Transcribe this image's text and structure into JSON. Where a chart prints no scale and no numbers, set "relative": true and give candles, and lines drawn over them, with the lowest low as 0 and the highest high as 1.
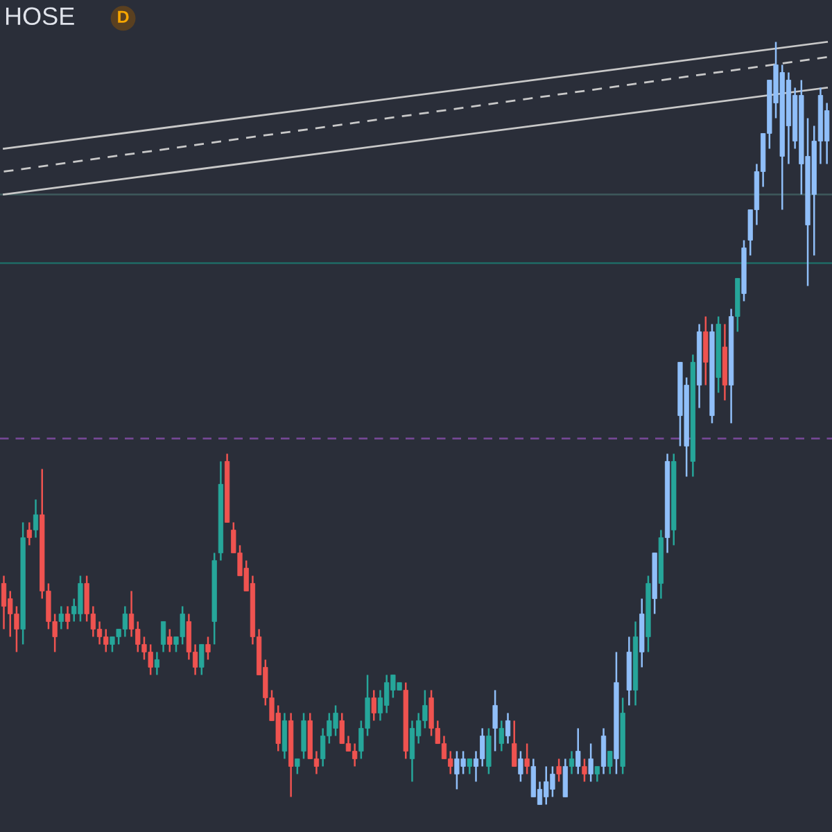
{
  "chart_data": {
    "type": "candlestick",
    "title": "HOSE",
    "annotations": [
      "D"
    ],
    "relative": true,
    "categories": [
      null,
      null,
      null,
      null,
      null,
      null,
      null,
      null,
      null,
      null,
      null,
      null,
      null,
      null,
      null,
      null,
      null,
      null,
      null,
      null,
      null,
      null,
      null,
      null,
      null,
      null,
      null,
      null,
      null,
      null,
      null,
      null,
      null,
      null,
      null,
      null,
      null,
      null,
      null,
      null,
      null,
      null,
      null,
      null,
      null,
      null,
      null,
      null,
      null,
      null,
      null,
      null,
      null,
      null,
      null,
      null,
      null,
      null,
      null,
      null,
      null,
      null,
      null,
      null,
      null,
      null,
      null,
      null,
      null,
      null,
      null,
      null,
      null,
      null,
      null,
      null,
      null,
      null,
      null,
      null,
      null,
      null,
      null,
      null,
      null,
      null,
      null,
      null,
      null,
      null,
      null,
      null,
      null,
      null,
      null,
      null,
      null,
      null,
      null,
      null,
      null,
      null,
      null,
      null,
      null,
      null,
      null,
      null,
      null,
      null,
      null,
      null,
      null,
      null,
      null,
      null,
      null,
      null,
      null,
      null,
      null,
      null,
      null,
      null,
      null,
      null,
      null,
      null,
      null,
      null
    ],
    "ohlc": [
      [
        0.29,
        0.3,
        0.23,
        0.26
      ],
      [
        0.27,
        0.28,
        0.22,
        0.25
      ],
      [
        0.25,
        0.26,
        0.2,
        0.23
      ],
      [
        0.23,
        0.37,
        0.21,
        0.35
      ],
      [
        0.36,
        0.37,
        0.34,
        0.35
      ],
      [
        0.36,
        0.4,
        0.35,
        0.38
      ],
      [
        0.38,
        0.44,
        0.27,
        0.28
      ],
      [
        0.28,
        0.29,
        0.23,
        0.24
      ],
      [
        0.24,
        0.25,
        0.2,
        0.22
      ],
      [
        0.24,
        0.26,
        0.23,
        0.25
      ],
      [
        0.25,
        0.26,
        0.23,
        0.24
      ],
      [
        0.25,
        0.27,
        0.24,
        0.26
      ],
      [
        0.25,
        0.3,
        0.24,
        0.29
      ],
      [
        0.29,
        0.3,
        0.24,
        0.25
      ],
      [
        0.25,
        0.26,
        0.22,
        0.23
      ],
      [
        0.23,
        0.24,
        0.21,
        0.22
      ],
      [
        0.22,
        0.23,
        0.2,
        0.21
      ],
      [
        0.21,
        0.22,
        0.2,
        0.22
      ],
      [
        0.22,
        0.23,
        0.21,
        0.23
      ],
      [
        0.23,
        0.26,
        0.22,
        0.25
      ],
      [
        0.25,
        0.28,
        0.22,
        0.23
      ],
      [
        0.23,
        0.24,
        0.2,
        0.21
      ],
      [
        0.21,
        0.22,
        0.19,
        0.2
      ],
      [
        0.2,
        0.21,
        0.17,
        0.18
      ],
      [
        0.18,
        0.2,
        0.17,
        0.19
      ],
      [
        0.21,
        0.24,
        0.2,
        0.24
      ],
      [
        0.22,
        0.23,
        0.2,
        0.21
      ],
      [
        0.21,
        0.22,
        0.2,
        0.22
      ],
      [
        0.22,
        0.26,
        0.21,
        0.25
      ],
      [
        0.24,
        0.25,
        0.19,
        0.2
      ],
      [
        0.2,
        0.21,
        0.17,
        0.18
      ],
      [
        0.18,
        0.21,
        0.17,
        0.21
      ],
      [
        0.21,
        0.22,
        0.19,
        0.2
      ],
      [
        0.24,
        0.33,
        0.21,
        0.32
      ],
      [
        0.33,
        0.45,
        0.32,
        0.42
      ],
      [
        0.45,
        0.46,
        0.37,
        0.37
      ],
      [
        0.36,
        0.37,
        0.33,
        0.33
      ],
      [
        0.33,
        0.34,
        0.3,
        0.3
      ],
      [
        0.31,
        0.32,
        0.28,
        0.28
      ],
      [
        0.29,
        0.3,
        0.21,
        0.22
      ],
      [
        0.22,
        0.23,
        0.17,
        0.17
      ],
      [
        0.18,
        0.19,
        0.13,
        0.14
      ],
      [
        0.14,
        0.15,
        0.11,
        0.11
      ],
      [
        0.12,
        0.13,
        0.07,
        0.08
      ],
      [
        0.07,
        0.12,
        0.06,
        0.11
      ],
      [
        0.11,
        0.12,
        0.01,
        0.05
      ],
      [
        0.05,
        0.06,
        0.04,
        0.06
      ],
      [
        0.07,
        0.12,
        0.06,
        0.11
      ],
      [
        0.11,
        0.12,
        0.06,
        0.06
      ],
      [
        0.06,
        0.07,
        0.04,
        0.05
      ],
      [
        0.06,
        0.1,
        0.05,
        0.09
      ],
      [
        0.09,
        0.12,
        0.08,
        0.11
      ],
      [
        0.1,
        0.13,
        0.09,
        0.12
      ],
      [
        0.11,
        0.12,
        0.08,
        0.08
      ],
      [
        0.08,
        0.09,
        0.07,
        0.07
      ],
      [
        0.07,
        0.08,
        0.05,
        0.06
      ],
      [
        0.07,
        0.11,
        0.06,
        0.1
      ],
      [
        0.1,
        0.17,
        0.09,
        0.14
      ],
      [
        0.14,
        0.15,
        0.11,
        0.12
      ],
      [
        0.12,
        0.15,
        0.11,
        0.14
      ],
      [
        0.13,
        0.17,
        0.12,
        0.16
      ],
      [
        0.15,
        0.17,
        0.14,
        0.17
      ],
      [
        0.15,
        0.16,
        0.15,
        0.16
      ],
      [
        0.15,
        0.16,
        0.06,
        0.07
      ],
      [
        0.06,
        0.11,
        0.03,
        0.1
      ],
      [
        0.09,
        0.12,
        0.08,
        0.11
      ],
      [
        0.11,
        0.15,
        0.1,
        0.13
      ],
      [
        0.14,
        0.15,
        0.09,
        0.1
      ],
      [
        0.1,
        0.11,
        0.08,
        0.08
      ],
      [
        0.08,
        0.09,
        0.06,
        0.06
      ],
      [
        0.06,
        0.07,
        0.04,
        0.05
      ],
      [
        0.04,
        0.07,
        0.02,
        0.06
      ],
      [
        0.06,
        0.07,
        0.04,
        0.05
      ],
      [
        0.05,
        0.06,
        0.04,
        0.06
      ],
      [
        0.05,
        0.07,
        0.03,
        0.06
      ],
      [
        0.06,
        0.1,
        0.05,
        0.09
      ],
      [
        0.05,
        0.1,
        0.04,
        0.09
      ],
      [
        0.13,
        0.15,
        0.07,
        0.1
      ],
      [
        0.08,
        0.11,
        0.07,
        0.1
      ],
      [
        0.09,
        0.12,
        0.08,
        0.11
      ],
      [
        0.08,
        0.11,
        0.05,
        0.05
      ],
      [
        0.06,
        0.07,
        0.03,
        0.04
      ],
      [
        0.06,
        0.08,
        0.04,
        0.05
      ],
      [
        0.05,
        0.06,
        0.01,
        0.01
      ],
      [
        0.02,
        0.03,
        0.0,
        0.0
      ],
      [
        0.01,
        0.05,
        0.0,
        0.03
      ],
      [
        0.04,
        0.05,
        0.01,
        0.02
      ],
      [
        0.05,
        0.06,
        0.03,
        0.04
      ],
      [
        0.05,
        0.06,
        0.01,
        0.01
      ],
      [
        0.05,
        0.07,
        0.04,
        0.06
      ],
      [
        0.07,
        0.1,
        0.04,
        0.05
      ],
      [
        0.05,
        0.06,
        0.03,
        0.04
      ],
      [
        0.06,
        0.08,
        0.03,
        0.04
      ],
      [
        0.04,
        0.05,
        0.03,
        0.05
      ],
      [
        0.05,
        0.1,
        0.04,
        0.09
      ],
      [
        0.05,
        0.07,
        0.04,
        0.07
      ],
      [
        0.06,
        0.2,
        0.04,
        0.16
      ],
      [
        0.05,
        0.14,
        0.04,
        0.12
      ],
      [
        0.15,
        0.22,
        0.13,
        0.2
      ],
      [
        0.15,
        0.24,
        0.13,
        0.22
      ],
      [
        0.2,
        0.27,
        0.18,
        0.25
      ],
      [
        0.22,
        0.3,
        0.2,
        0.29
      ],
      [
        0.27,
        0.33,
        0.25,
        0.33
      ],
      [
        0.29,
        0.36,
        0.27,
        0.35
      ],
      [
        0.35,
        0.46,
        0.33,
        0.45
      ],
      [
        0.36,
        0.46,
        0.34,
        0.45
      ],
      [
        0.51,
        0.58,
        0.47,
        0.58
      ],
      [
        0.47,
        0.56,
        0.43,
        0.55
      ],
      [
        0.45,
        0.59,
        0.43,
        0.58
      ],
      [
        0.55,
        0.63,
        0.52,
        0.62
      ],
      [
        0.62,
        0.64,
        0.55,
        0.58
      ],
      [
        0.62,
        0.63,
        0.5,
        0.51
      ],
      [
        0.56,
        0.64,
        0.54,
        0.63
      ],
      [
        0.6,
        0.63,
        0.53,
        0.55
      ],
      [
        0.55,
        0.65,
        0.5,
        0.64
      ],
      [
        0.64,
        0.69,
        0.62,
        0.69
      ],
      [
        0.67,
        0.74,
        0.66,
        0.73
      ],
      [
        0.74,
        0.78,
        0.72,
        0.78
      ],
      [
        0.78,
        0.84,
        0.76,
        0.83
      ],
      [
        0.83,
        0.88,
        0.81,
        0.88
      ],
      [
        0.88,
        0.95,
        0.86,
        0.95
      ],
      [
        0.92,
        1.0,
        0.9,
        0.97
      ],
      [
        0.96,
        0.97,
        0.78,
        0.85
      ],
      [
        0.95,
        0.96,
        0.84,
        0.89
      ],
      [
        0.93,
        0.94,
        0.86,
        0.87
      ],
      [
        0.93,
        0.95,
        0.8,
        0.84
      ],
      [
        0.85,
        0.9,
        0.68,
        0.76
      ],
      [
        0.87,
        0.89,
        0.72,
        0.8
      ],
      [
        0.93,
        0.94,
        0.84,
        0.87
      ],
      [
        0.91,
        0.92,
        0.84,
        0.87
      ]
    ],
    "colors": [
      "#ef5350",
      "#ef5350",
      "#ef5350",
      "#26a69a",
      "#ef5350",
      "#26a69a",
      "#ef5350",
      "#ef5350",
      "#ef5350",
      "#26a69a",
      "#ef5350",
      "#26a69a",
      "#26a69a",
      "#ef5350",
      "#ef5350",
      "#ef5350",
      "#ef5350",
      "#26a69a",
      "#26a69a",
      "#26a69a",
      "#ef5350",
      "#ef5350",
      "#ef5350",
      "#ef5350",
      "#26a69a",
      "#26a69a",
      "#ef5350",
      "#26a69a",
      "#26a69a",
      "#ef5350",
      "#ef5350",
      "#26a69a",
      "#ef5350",
      "#26a69a",
      "#26a69a",
      "#ef5350",
      "#ef5350",
      "#ef5350",
      "#ef5350",
      "#ef5350",
      "#ef5350",
      "#ef5350",
      "#ef5350",
      "#ef5350",
      "#26a69a",
      "#ef5350",
      "#26a69a",
      "#26a69a",
      "#ef5350",
      "#ef5350",
      "#26a69a",
      "#26a69a",
      "#26a69a",
      "#ef5350",
      "#ef5350",
      "#ef5350",
      "#26a69a",
      "#26a69a",
      "#ef5350",
      "#26a69a",
      "#26a69a",
      "#26a69a",
      "#26a69a",
      "#ef5350",
      "#26a69a",
      "#26a69a",
      "#26a69a",
      "#ef5350",
      "#ef5350",
      "#ef5350",
      "#ef5350",
      "#90bff9",
      "#90bff9",
      "#26a69a",
      "#90bff9",
      "#90bff9",
      "#26a69a",
      "#90bff9",
      "#26a69a",
      "#90bff9",
      "#ef5350",
      "#90bff9",
      "#ef5350",
      "#90bff9",
      "#90bff9",
      "#90bff9",
      "#90bff9",
      "#ef5350",
      "#90bff9",
      "#26a69a",
      "#90bff9",
      "#ef5350",
      "#90bff9",
      "#26a69a",
      "#90bff9",
      "#26a69a",
      "#90bff9",
      "#26a69a",
      "#90bff9",
      "#26a69a",
      "#90bff9",
      "#26a69a",
      "#90bff9",
      "#26a69a",
      "#90bff9",
      "#26a69a",
      "#90bff9",
      "#90bff9",
      "#26a69a",
      "#90bff9",
      "#ef5350",
      "#90bff9",
      "#26a69a",
      "#ef5350",
      "#90bff9",
      "#26a69a",
      "#90bff9",
      "#90bff9",
      "#90bff9",
      "#90bff9",
      "#90bff9",
      "#90bff9",
      "#90bff9",
      "#90bff9",
      "#90bff9",
      "#90bff9",
      "#90bff9",
      "#90bff9",
      "#90bff9",
      "#90bff9"
    ],
    "series": [
      {
        "type": "line",
        "color": "#c8c8c8",
        "values": [
          0.86,
          null,
          null,
          null,
          null,
          null,
          null,
          null,
          null,
          null,
          null,
          null,
          null,
          null,
          null,
          null,
          null,
          null,
          null,
          null,
          null,
          null,
          null,
          null,
          null,
          null,
          null,
          null,
          null,
          null,
          null,
          null,
          null,
          null,
          null,
          null,
          null,
          null,
          null,
          null,
          null,
          null,
          null,
          null,
          null,
          null,
          null,
          null,
          null,
          null,
          null,
          null,
          null,
          null,
          null,
          null,
          null,
          null,
          null,
          null,
          null,
          null,
          null,
          null,
          null,
          null,
          null,
          null,
          null,
          null,
          null,
          null,
          null,
          null,
          null,
          null,
          null,
          null,
          null,
          null,
          null,
          null,
          null,
          null,
          null,
          null,
          null,
          null,
          null,
          null,
          null,
          null,
          null,
          null,
          null,
          null,
          null,
          null,
          null,
          null,
          null,
          null,
          null,
          null,
          null,
          null,
          null,
          null,
          null,
          null,
          null,
          null,
          null,
          null,
          null,
          null,
          null,
          null,
          null,
          null,
          null,
          null,
          null,
          null,
          null,
          null,
          null,
          null,
          null,
          1.0
        ],
        "line_style": "solid"
      },
      {
        "type": "line",
        "color": "#c8c8c8",
        "values": [
          0.83,
          null,
          null,
          null,
          null,
          null,
          null,
          null,
          null,
          null,
          null,
          null,
          null,
          null,
          null,
          null,
          null,
          null,
          null,
          null,
          null,
          null,
          null,
          null,
          null,
          null,
          null,
          null,
          null,
          null,
          null,
          null,
          null,
          null,
          null,
          null,
          null,
          null,
          null,
          null,
          null,
          null,
          null,
          null,
          null,
          null,
          null,
          null,
          null,
          null,
          null,
          null,
          null,
          null,
          null,
          null,
          null,
          null,
          null,
          null,
          null,
          null,
          null,
          null,
          null,
          null,
          null,
          null,
          null,
          null,
          null,
          null,
          null,
          null,
          null,
          null,
          null,
          null,
          null,
          null,
          null,
          null,
          null,
          null,
          null,
          null,
          null,
          null,
          null,
          null,
          null,
          null,
          null,
          null,
          null,
          null,
          null,
          null,
          null,
          null,
          null,
          null,
          null,
          null,
          null,
          null,
          null,
          null,
          null,
          null,
          null,
          null,
          null,
          null,
          null,
          null,
          null,
          null,
          null,
          null,
          null,
          null,
          null,
          null,
          null,
          null,
          null,
          null,
          null,
          0.98
        ],
        "line_style": "dashed"
      },
      {
        "type": "line",
        "color": "#c8c8c8",
        "values": [
          0.8,
          null,
          null,
          null,
          null,
          null,
          null,
          null,
          null,
          null,
          null,
          null,
          null,
          null,
          null,
          null,
          null,
          null,
          null,
          null,
          null,
          null,
          null,
          null,
          null,
          null,
          null,
          null,
          null,
          null,
          null,
          null,
          null,
          null,
          null,
          null,
          null,
          null,
          null,
          null,
          null,
          null,
          null,
          null,
          null,
          null,
          null,
          null,
          null,
          null,
          null,
          null,
          null,
          null,
          null,
          null,
          null,
          null,
          null,
          null,
          null,
          null,
          null,
          null,
          null,
          null,
          null,
          null,
          null,
          null,
          null,
          null,
          null,
          null,
          null,
          null,
          null,
          null,
          null,
          null,
          null,
          null,
          null,
          null,
          null,
          null,
          null,
          null,
          null,
          null,
          null,
          null,
          null,
          null,
          null,
          null,
          null,
          null,
          null,
          null,
          null,
          null,
          null,
          null,
          null,
          null,
          null,
          null,
          null,
          null,
          null,
          null,
          null,
          null,
          null,
          null,
          null,
          null,
          null,
          null,
          null,
          null,
          null,
          null,
          null,
          null,
          null,
          null,
          null,
          0.94
        ],
        "line_style": "solid"
      }
    ],
    "ref_lines": [
      {
        "axis": "y",
        "value": 0.8,
        "color": "#3e5a5c",
        "line_style": "solid"
      },
      {
        "axis": "y",
        "value": 0.71,
        "color": "#1f6b66",
        "line_style": "solid"
      },
      {
        "axis": "y",
        "value": 0.48,
        "color": "#7a4a9a",
        "line_style": "dashed"
      }
    ]
  }
}
